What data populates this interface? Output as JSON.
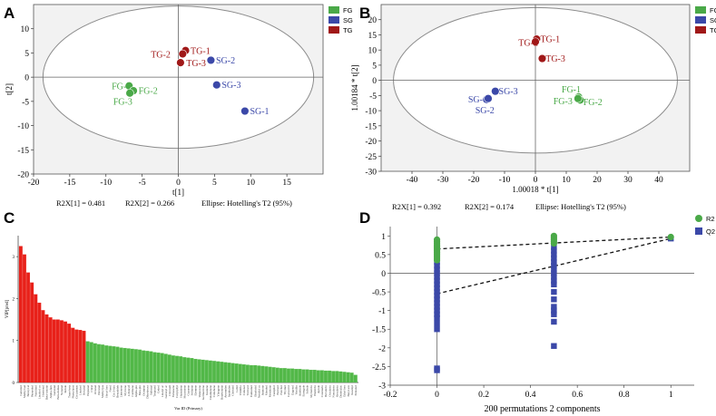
{
  "colors": {
    "FG": "#4aa948",
    "SG": "#3b48a8",
    "TG": "#a01818",
    "vip_high": "#e8211a",
    "vip_low": "#52b848",
    "R2": "#4aa948",
    "Q2": "#3b48a8",
    "plot_bg": "#f2f2f2",
    "ellipse_fill": "#ffffff"
  },
  "chart_data": [
    {
      "panel": "A",
      "type": "scatter",
      "xlim": [
        -20,
        20
      ],
      "ylim": [
        -20,
        15
      ],
      "xticks": [
        -20,
        -15,
        -10,
        -5,
        0,
        5,
        10,
        15
      ],
      "yticks": [
        -20,
        -15,
        -10,
        -5,
        0,
        5,
        10
      ],
      "xlabel": "t[1]",
      "ylabel": "t[2]",
      "ellipse": {
        "rx": 18.7,
        "ry": 14.7
      },
      "legend": [
        "FG",
        "SG",
        "TG"
      ],
      "footer": {
        "r2x1": "R2X[1] = 0.481",
        "r2x2": "R2X[2] = 0.266",
        "ellipse": "Ellipse: Hotelling's T2 (95%)"
      },
      "points": [
        {
          "label": "FG-1",
          "group": "FG",
          "x": -6.8,
          "y": -1.8,
          "lx": -9.2,
          "ly": -1.8
        },
        {
          "label": "FG-2",
          "group": "FG",
          "x": -6.2,
          "y": -2.8,
          "lx": -5.5,
          "ly": -2.8
        },
        {
          "label": "FG-3",
          "group": "FG",
          "x": -6.7,
          "y": -3.3,
          "lx": -9.0,
          "ly": -5.0
        },
        {
          "label": "SG-1",
          "group": "SG",
          "x": 9.2,
          "y": -7.0,
          "lx": 9.9,
          "ly": -7.0
        },
        {
          "label": "SG-2",
          "group": "SG",
          "x": 4.5,
          "y": 3.5,
          "lx": 5.2,
          "ly": 3.5
        },
        {
          "label": "SG-3",
          "group": "SG",
          "x": 5.3,
          "y": -1.6,
          "lx": 6.0,
          "ly": -1.6
        },
        {
          "label": "TG-1",
          "group": "TG",
          "x": 1.0,
          "y": 5.5,
          "lx": 1.7,
          "ly": 5.5
        },
        {
          "label": "TG-2",
          "group": "TG",
          "x": 0.6,
          "y": 4.8,
          "lx": -3.8,
          "ly": 4.7
        },
        {
          "label": "TG-3",
          "group": "TG",
          "x": 0.3,
          "y": 3.0,
          "lx": 1.1,
          "ly": 2.9
        }
      ]
    },
    {
      "panel": "B",
      "type": "scatter",
      "xlim": [
        -50,
        50
      ],
      "ylim": [
        -30,
        25
      ],
      "xticks": [
        -40,
        -30,
        -20,
        -10,
        0,
        10,
        20,
        30,
        40
      ],
      "yticks": [
        -30,
        -25,
        -20,
        -15,
        -10,
        -5,
        0,
        5,
        10,
        15,
        20
      ],
      "xlabel": "1.00018 * t[1]",
      "ylabel": "1.00184 * t[2]",
      "ellipse": {
        "rx": 46,
        "ry": 24
      },
      "legend": [
        "FG",
        "SG",
        "TG"
      ],
      "footer": {
        "r2x1": "R2X[1] = 0.392",
        "r2x2": "R2X[2] = 0.174",
        "ellipse": "Ellipse: Hotelling's T2 (95%)"
      },
      "points": [
        {
          "label": "FG-1",
          "group": "FG",
          "x": 14.0,
          "y": -5.5,
          "lx": 8.5,
          "ly": -3.0
        },
        {
          "label": "FG-2",
          "group": "FG",
          "x": 14.5,
          "y": -6.5,
          "lx": 15.5,
          "ly": -7.2
        },
        {
          "label": "FG-3",
          "group": "FG",
          "x": 13.8,
          "y": -6.0,
          "lx": 5.8,
          "ly": -6.8
        },
        {
          "label": "SG-1",
          "group": "SG",
          "x": -15.8,
          "y": -6.3,
          "lx": -21.8,
          "ly": -6.3
        },
        {
          "label": "SG-2",
          "group": "SG",
          "x": -15.3,
          "y": -6.0,
          "lx": -19.5,
          "ly": -9.8
        },
        {
          "label": "SG-3",
          "group": "SG",
          "x": -13.0,
          "y": -3.6,
          "lx": -11.9,
          "ly": -3.6
        },
        {
          "label": "TG-1",
          "group": "TG",
          "x": 0.4,
          "y": 13.6,
          "lx": 1.6,
          "ly": 13.6
        },
        {
          "label": "TG-2",
          "group": "TG",
          "x": 0.0,
          "y": 12.7,
          "lx": -5.5,
          "ly": 12.5
        },
        {
          "label": "TG-3",
          "group": "TG",
          "x": 2.2,
          "y": 7.2,
          "lx": 3.3,
          "ly": 7.2
        }
      ]
    },
    {
      "panel": "C",
      "type": "bar",
      "ylabel": "VIP[pred]",
      "xlabel": "Var ID (Primary)",
      "ylim": [
        0,
        3.5
      ],
      "yticks": [
        0,
        1,
        2,
        3
      ],
      "threshold": 1.0,
      "categories": [
        "Geraniol",
        "Methyl sal",
        "Benzyl al",
        "Phenethyl",
        "Nerolidol",
        "Linalool ox",
        "Hotrienol",
        "Beta-ionone",
        "Alpha-farn",
        "Geranial",
        "Beta-damas",
        "Nonanal",
        "Indole",
        "Trans-beta",
        "Phenylacet",
        "Cis-jasmon",
        "Linalool",
        "Hexanal",
        "Heptanal",
        "Citral",
        "Octanal",
        "Decanal",
        "Methyl jas",
        "Hexyl hex",
        "Nerol",
        "Cis-3-hex",
        "Benzaldeh",
        "Limonene",
        "Myrcene",
        "2-Pentylf",
        "Cadinene",
        "Alpha-pin",
        "Beta-pin",
        "Ocimene",
        "Dihydroact",
        "Safranal",
        "Terpineol",
        "Cedrol",
        "Linalyl ac",
        "Geranyl ac",
        "Citronell",
        "Farnesene",
        "Caryophyl",
        "Humulene",
        "Muurolene",
        "Copaene",
        "Selinene",
        "Elemene",
        "Valencene",
        "Germacrene",
        "Guaiene",
        "Calamenene",
        "Cubebene",
        "Ylangene",
        "Bourbonene",
        "Aromaden",
        "Spathulen",
        "Globulol",
        "Ledol",
        "Viridiflo",
        "Cubenol",
        "Torreyol",
        "Eudesmol",
        "Bisabolol",
        "Nerolid ox",
        "Jasmone",
        "Menthol",
        "Menthone",
        "Camphor",
        "Borneol",
        "Fenchol",
        "Thymol",
        "Carvacrol",
        "Eugenol",
        "Vanillin",
        "Anethole",
        "Estragole",
        "Safrole",
        "Myristicin",
        "Elemicin",
        "Apiole",
        "Coumarin",
        "Decalacto",
        "Octalacto",
        "Nonalacto",
        "Hexalacto",
        "Dodecalac",
        "Ethyl hex",
        "Butyl ace",
        "Isoamyl",
        "Pentanol"
      ],
      "values": [
        3.25,
        3.05,
        2.62,
        2.38,
        2.1,
        1.9,
        1.72,
        1.62,
        1.55,
        1.5,
        1.5,
        1.48,
        1.45,
        1.4,
        1.3,
        1.26,
        1.25,
        1.23,
        0.98,
        0.96,
        0.93,
        0.91,
        0.9,
        0.88,
        0.87,
        0.86,
        0.85,
        0.83,
        0.82,
        0.81,
        0.8,
        0.79,
        0.78,
        0.76,
        0.75,
        0.74,
        0.72,
        0.71,
        0.7,
        0.68,
        0.66,
        0.64,
        0.63,
        0.62,
        0.6,
        0.59,
        0.58,
        0.56,
        0.55,
        0.54,
        0.53,
        0.52,
        0.51,
        0.5,
        0.49,
        0.48,
        0.47,
        0.46,
        0.45,
        0.44,
        0.43,
        0.42,
        0.41,
        0.41,
        0.4,
        0.39,
        0.38,
        0.37,
        0.36,
        0.35,
        0.34,
        0.34,
        0.33,
        0.33,
        0.32,
        0.32,
        0.31,
        0.31,
        0.3,
        0.3,
        0.29,
        0.29,
        0.28,
        0.28,
        0.27,
        0.27,
        0.26,
        0.25,
        0.24,
        0.23,
        0.18
      ]
    },
    {
      "panel": "D",
      "type": "scatter",
      "xlim": [
        -0.2,
        1.1
      ],
      "ylim": [
        -3,
        1.25
      ],
      "xticks": [
        -0.2,
        0,
        0.2,
        0.4,
        0.6,
        0.8,
        1
      ],
      "yticks": [
        -3,
        -2.5,
        -2,
        -1.5,
        -1,
        -0.5,
        0,
        0.5,
        1
      ],
      "xlabel": "200 permutations 2 components",
      "legend": [
        "R2",
        "Q2"
      ],
      "r2_line": [
        [
          0,
          0.65
        ],
        [
          1,
          0.97
        ]
      ],
      "q2_line": [
        [
          0,
          -0.55
        ],
        [
          1,
          0.93
        ]
      ],
      "r2_points": [
        {
          "x": 0,
          "y": 0.9
        },
        {
          "x": 0,
          "y": 0.85
        },
        {
          "x": 0,
          "y": 0.8
        },
        {
          "x": 0,
          "y": 0.75
        },
        {
          "x": 0,
          "y": 0.7
        },
        {
          "x": 0,
          "y": 0.65
        },
        {
          "x": 0,
          "y": 0.6
        },
        {
          "x": 0,
          "y": 0.55
        },
        {
          "x": 0,
          "y": 0.5
        },
        {
          "x": 0,
          "y": 0.45
        },
        {
          "x": 0,
          "y": 0.4
        },
        {
          "x": 0,
          "y": 0.35
        },
        {
          "x": 0.5,
          "y": 1.0
        },
        {
          "x": 0.5,
          "y": 0.95
        },
        {
          "x": 0.5,
          "y": 0.9
        },
        {
          "x": 0.5,
          "y": 0.85
        },
        {
          "x": 0.5,
          "y": 0.8
        },
        {
          "x": 1,
          "y": 0.97
        }
      ],
      "q2_points": [
        {
          "x": 0,
          "y": 0.3
        },
        {
          "x": 0,
          "y": 0.2
        },
        {
          "x": 0,
          "y": 0.1
        },
        {
          "x": 0,
          "y": 0.0
        },
        {
          "x": 0,
          "y": -0.1
        },
        {
          "x": 0,
          "y": -0.2
        },
        {
          "x": 0,
          "y": -0.3
        },
        {
          "x": 0,
          "y": -0.4
        },
        {
          "x": 0,
          "y": -0.5
        },
        {
          "x": 0,
          "y": -0.6
        },
        {
          "x": 0,
          "y": -0.7
        },
        {
          "x": 0,
          "y": -0.8
        },
        {
          "x": 0,
          "y": -0.9
        },
        {
          "x": 0,
          "y": -1.0
        },
        {
          "x": 0,
          "y": -1.1
        },
        {
          "x": 0,
          "y": -1.2
        },
        {
          "x": 0,
          "y": -1.35
        },
        {
          "x": 0,
          "y": -1.5
        },
        {
          "x": 0,
          "y": -2.55
        },
        {
          "x": 0,
          "y": -2.6
        },
        {
          "x": 0.5,
          "y": 0.7
        },
        {
          "x": 0.5,
          "y": 0.6
        },
        {
          "x": 0.5,
          "y": 0.5
        },
        {
          "x": 0.5,
          "y": 0.4
        },
        {
          "x": 0.5,
          "y": 0.3
        },
        {
          "x": 0.5,
          "y": 0.2
        },
        {
          "x": 0.5,
          "y": 0.1
        },
        {
          "x": 0.5,
          "y": 0.0
        },
        {
          "x": 0.5,
          "y": -0.1
        },
        {
          "x": 0.5,
          "y": -0.2
        },
        {
          "x": 0.5,
          "y": -0.3
        },
        {
          "x": 0.5,
          "y": -0.5
        },
        {
          "x": 0.5,
          "y": -0.7
        },
        {
          "x": 0.5,
          "y": -0.9
        },
        {
          "x": 0.5,
          "y": -1.0
        },
        {
          "x": 0.5,
          "y": -1.1
        },
        {
          "x": 0.5,
          "y": -1.3
        },
        {
          "x": 0.5,
          "y": -1.95
        },
        {
          "x": 1,
          "y": 0.93
        }
      ]
    }
  ]
}
